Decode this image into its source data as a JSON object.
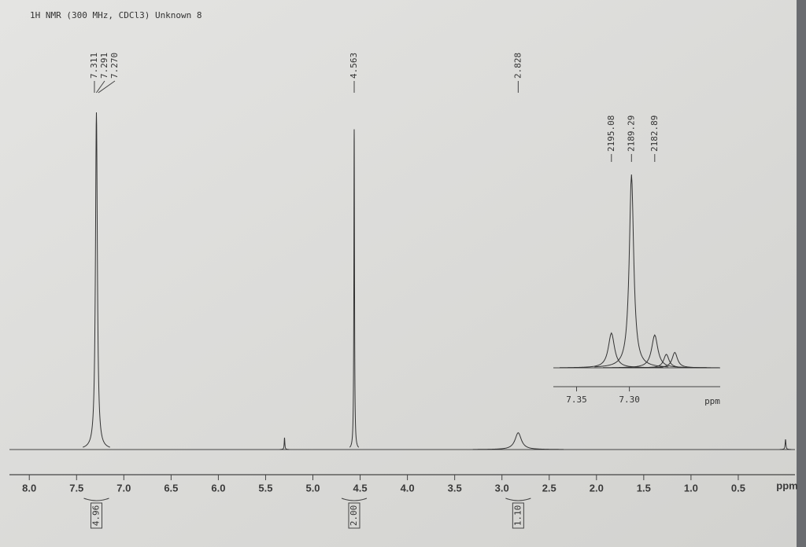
{
  "chart_data": {
    "type": "nmr",
    "title": "1H NMR (300 MHz, CDCl3) Unknown 8",
    "xlabel": "ppm",
    "xlim": [
      8.21,
      -0.1
    ],
    "ylim": [
      0,
      100
    ],
    "xticks": [
      {
        "value": 8,
        "label": "8.0"
      },
      7.5,
      {
        "value": 7,
        "label": "7.0"
      },
      6.5,
      {
        "value": 6,
        "label": "6.0"
      },
      5.5,
      {
        "value": 5,
        "label": "5.0"
      },
      4.5,
      {
        "value": 4,
        "label": "4.0"
      },
      3.5,
      {
        "value": 3,
        "label": "3.0"
      },
      2.5,
      {
        "value": 2,
        "label": "2.0"
      },
      1.5,
      {
        "value": 1,
        "label": "1.0"
      },
      0.5
    ],
    "peak_labels": [
      7.311,
      7.291,
      {
        "value": 7.27,
        "label": "7.270"
      },
      4.563,
      2.828
    ],
    "signals": {
      "x": [
        7.29,
        5.3,
        4.563,
        2.828,
        0.0
      ],
      "intensity": [
        100,
        3.5,
        95,
        5,
        3
      ],
      "width": [
        0.012,
        0.004,
        0.004,
        0.04,
        0.005
      ]
    },
    "integrals": {
      "x": [
        7.29,
        4.563,
        2.828
      ],
      "values": [
        4.96,
        2,
        1.1
      ],
      "value_labels": [
        "4.96",
        "2.00",
        "1.10"
      ]
    },
    "inset": {
      "xlabel": "ppm",
      "xlim": [
        7.372,
        7.214
      ],
      "ylim": [
        0,
        100
      ],
      "xticks": [
        7.35,
        {
          "value": 7.3,
          "label": "7.30"
        }
      ],
      "peak_labels": [
        2195.08,
        2189.29,
        2182.89
      ],
      "signals": {
        "x": [
          7.317,
          7.298,
          7.276,
          7.265,
          7.257
        ],
        "intensity": [
          18,
          100,
          17,
          7,
          8
        ],
        "width": [
          0.0035,
          0.0025,
          0.0035,
          0.003,
          0.003
        ]
      }
    }
  }
}
